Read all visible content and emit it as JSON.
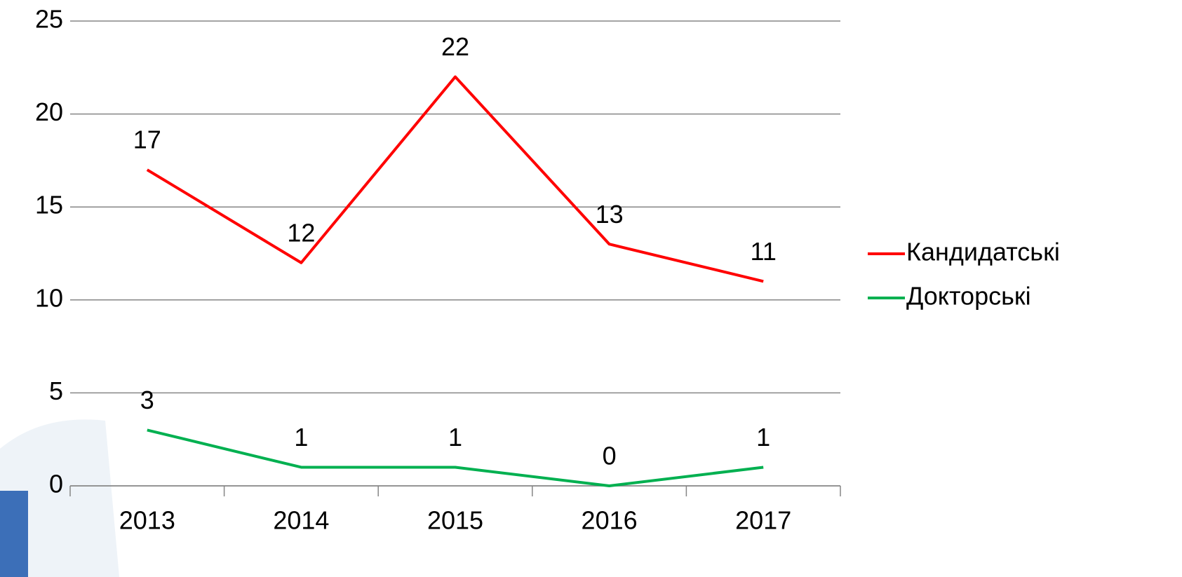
{
  "chart_data": {
    "type": "line",
    "categories": [
      "2013",
      "2014",
      "2015",
      "2016",
      "2017"
    ],
    "series": [
      {
        "name": "Кандидатські",
        "color": "#ff0000",
        "values": [
          17,
          12,
          22,
          13,
          11
        ]
      },
      {
        "name": "Докторські",
        "color": "#00b050",
        "values": [
          3,
          1,
          1,
          0,
          1
        ]
      }
    ],
    "ylim": [
      0,
      25
    ],
    "yticks": [
      0,
      5,
      10,
      15,
      20,
      25
    ],
    "grid": true,
    "legend": "right"
  }
}
